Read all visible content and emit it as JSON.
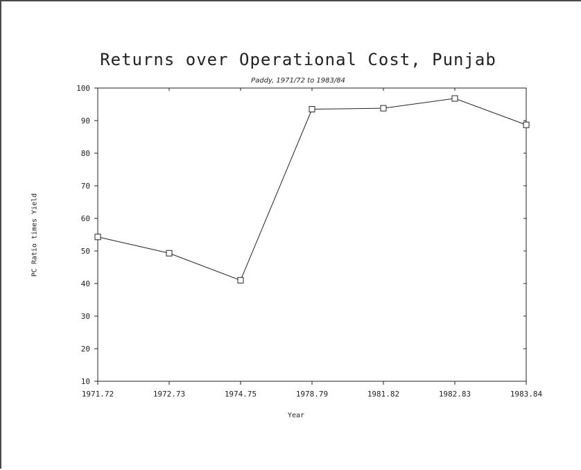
{
  "chart_data": {
    "type": "line",
    "title": "Returns over Operational Cost, Punjab",
    "subtitle": "Paddy, 1971/72 to 1983/84",
    "xlabel": "Year",
    "ylabel": "PC Ratio times Yield",
    "categories": [
      "1971.72",
      "1972.73",
      "1974.75",
      "1978.79",
      "1981.82",
      "1982.83",
      "1983.84"
    ],
    "series": [
      {
        "values": [
          54.3,
          49.3,
          41.0,
          93.5,
          93.8,
          96.8,
          88.7
        ]
      }
    ],
    "ylim": [
      10,
      100
    ],
    "yticks": [
      10,
      20,
      30,
      40,
      50,
      60,
      70,
      80,
      90,
      100
    ],
    "grid": false,
    "marker": "square"
  },
  "colors": {
    "line": "#222222",
    "axis": "#222222",
    "background": "#ffffff"
  }
}
